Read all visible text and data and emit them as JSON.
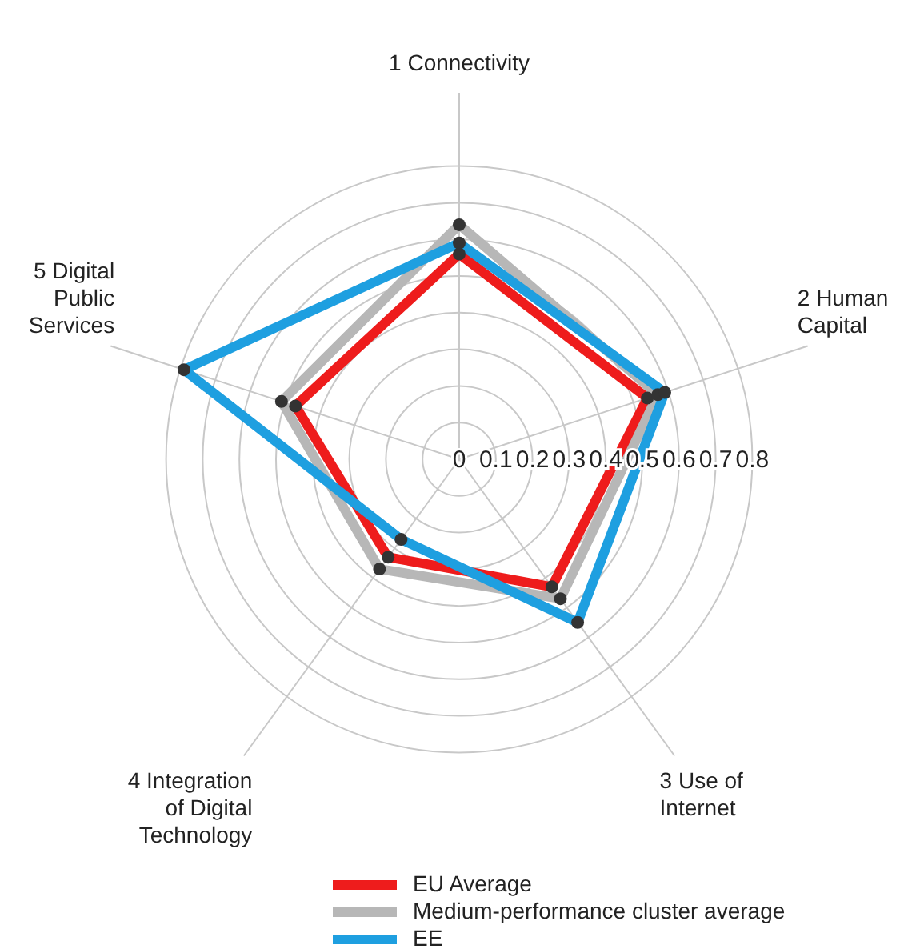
{
  "chart_data": {
    "type": "radar",
    "categories": [
      "1 Connectivity",
      "2 Human Capital",
      "3 Use of Internet",
      "4 Integration of Digital Technology",
      "5 Digital Public Services"
    ],
    "series": [
      {
        "name": "EU Average",
        "color": "#ee1c1c",
        "values": [
          0.56,
          0.54,
          0.43,
          0.33,
          0.47
        ]
      },
      {
        "name": "Medium-performance cluster average",
        "color": "#b7b7b7",
        "values": [
          0.64,
          0.57,
          0.47,
          0.37,
          0.51
        ]
      },
      {
        "name": "EE",
        "color": "#1e9fe0",
        "values": [
          0.59,
          0.59,
          0.55,
          0.27,
          0.79
        ]
      }
    ],
    "ylim": [
      0,
      0.8
    ],
    "yticks": [
      0,
      0.1,
      0.2,
      0.3,
      0.4,
      0.5,
      0.6,
      0.7,
      0.8
    ],
    "grid": true,
    "legend": "bottom",
    "marker": "circle"
  }
}
